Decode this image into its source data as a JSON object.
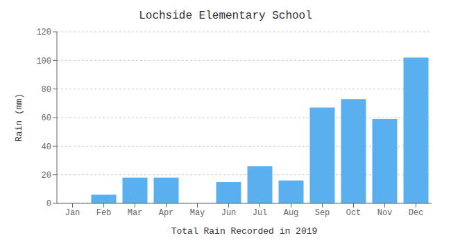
{
  "chart_data": {
    "type": "bar",
    "title": "Lochside Elementary School",
    "xlabel": "Total Rain Recorded in 2019",
    "ylabel": "Rain (mm)",
    "categories": [
      "Jan",
      "Feb",
      "Mar",
      "Apr",
      "May",
      "Jun",
      "Jul",
      "Aug",
      "Sep",
      "Oct",
      "Nov",
      "Dec"
    ],
    "values": [
      0,
      6,
      18,
      18,
      0,
      15,
      26,
      16,
      67,
      73,
      59,
      102
    ],
    "color": "#5aafef",
    "ylim": [
      0,
      120
    ],
    "yticks": [
      0,
      20,
      40,
      60,
      80,
      100,
      120
    ],
    "grid": true
  }
}
